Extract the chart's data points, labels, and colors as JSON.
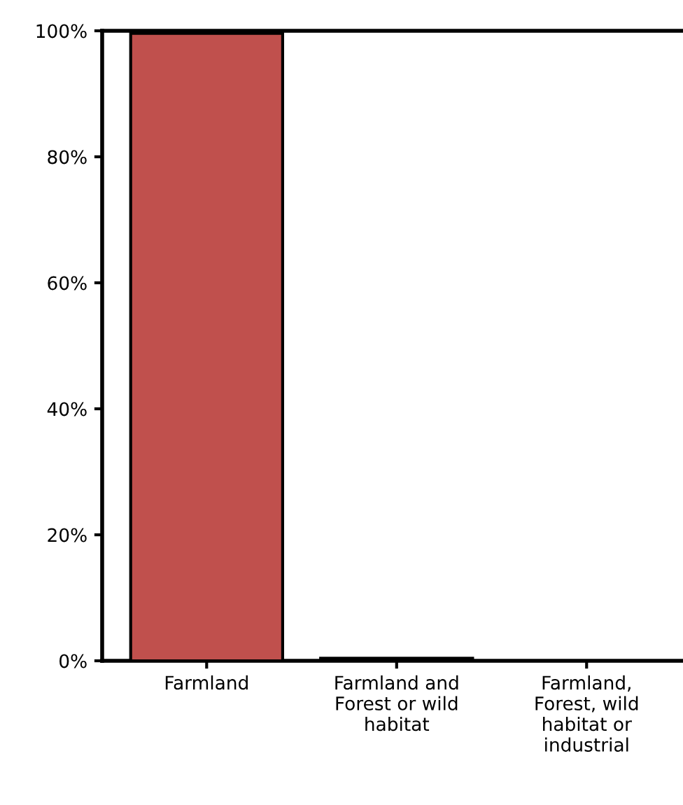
{
  "chart_data": {
    "type": "bar",
    "categories": [
      "Farmland",
      "Farmland and\nForest or wild\nhabitat",
      "Farmland,\nForest, wild\nhabitat or\nindustrial"
    ],
    "values": [
      99.6,
      0.4,
      0
    ],
    "color": "#c0504d",
    "ylim": [
      0,
      100
    ],
    "yticks": [
      {
        "value": 0,
        "label": "0%"
      },
      {
        "value": 20,
        "label": "20%"
      },
      {
        "value": 40,
        "label": "40%"
      },
      {
        "value": 60,
        "label": "60%"
      },
      {
        "value": 80,
        "label": "80%"
      },
      {
        "value": 100,
        "label": "100%"
      }
    ],
    "grid": false,
    "legend": false
  }
}
